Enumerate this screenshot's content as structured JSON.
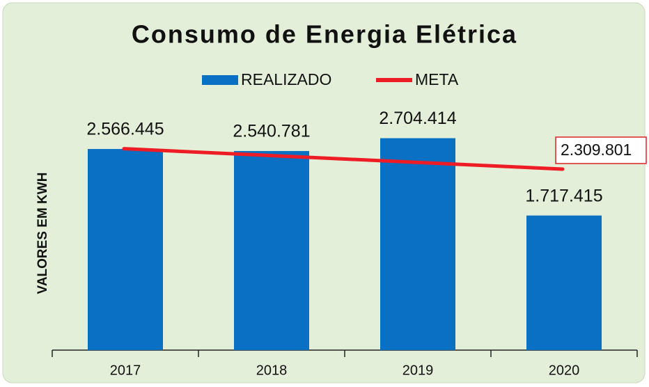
{
  "chart_data": {
    "type": "bar",
    "title": "Consumo de Energia Elétrica",
    "y_label": "VALORES EM KWH",
    "categories": [
      "2017",
      "2018",
      "2019",
      "2020"
    ],
    "series": [
      {
        "name": "REALIZADO",
        "type": "bar",
        "color": "#0a70c4",
        "values": [
          2566445,
          2540781,
          2704414,
          1717415
        ],
        "value_labels": [
          "2.566.445",
          "2.540.781",
          "2.704.414",
          "1.717.415"
        ]
      },
      {
        "name": "META",
        "type": "line",
        "color": "#ee1c25",
        "values": [
          2570000,
          2483000,
          2396000,
          2309801
        ],
        "value_labels": [
          null,
          null,
          null,
          "2.309.801"
        ]
      }
    ],
    "ylim": [
      0,
      3100000
    ],
    "legend": "top"
  }
}
